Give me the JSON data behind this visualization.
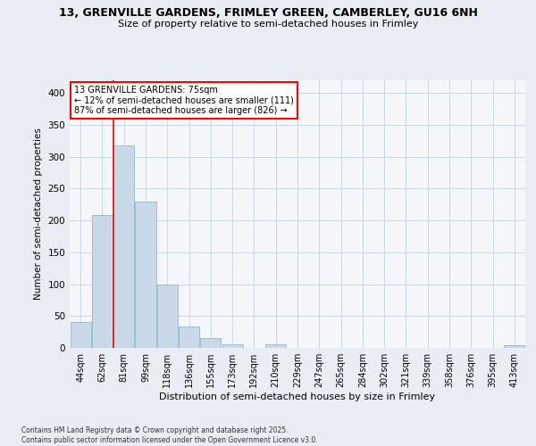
{
  "title_line1": "13, GRENVILLE GARDENS, FRIMLEY GREEN, CAMBERLEY, GU16 6NH",
  "title_line2": "Size of property relative to semi-detached houses in Frimley",
  "xlabel": "Distribution of semi-detached houses by size in Frimley",
  "ylabel": "Number of semi-detached properties",
  "categories": [
    "44sqm",
    "62sqm",
    "81sqm",
    "99sqm",
    "118sqm",
    "136sqm",
    "155sqm",
    "173sqm",
    "192sqm",
    "210sqm",
    "229sqm",
    "247sqm",
    "265sqm",
    "284sqm",
    "302sqm",
    "321sqm",
    "339sqm",
    "358sqm",
    "376sqm",
    "395sqm",
    "413sqm"
  ],
  "values": [
    41,
    208,
    318,
    230,
    100,
    33,
    16,
    5,
    0,
    6,
    0,
    0,
    0,
    0,
    0,
    0,
    0,
    0,
    0,
    0,
    4
  ],
  "bar_color": "#c9d9e8",
  "bar_edge_color": "#a0bcd0",
  "vline_x": 1.5,
  "vline_color": "red",
  "annotation_text": "13 GRENVILLE GARDENS: 75sqm\n← 12% of semi-detached houses are smaller (111)\n87% of semi-detached houses are larger (826) →",
  "annotation_box_color": "white",
  "annotation_box_edge_color": "red",
  "ylim": [
    0,
    420
  ],
  "yticks": [
    0,
    50,
    100,
    150,
    200,
    250,
    300,
    350,
    400
  ],
  "footer_line1": "Contains HM Land Registry data © Crown copyright and database right 2025.",
  "footer_line2": "Contains public sector information licensed under the Open Government Licence v3.0.",
  "bg_color": "#e8eef4",
  "plot_bg_color": "#f5f8fb",
  "grid_color": "#c8d8e8"
}
